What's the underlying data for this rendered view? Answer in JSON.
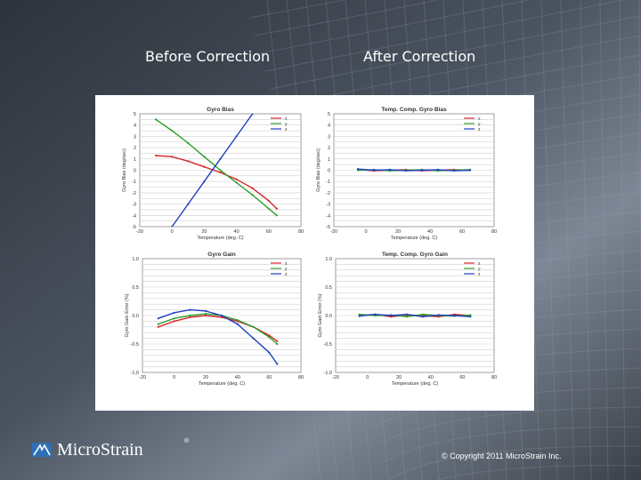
{
  "slide": {
    "before_heading": "Before Correction",
    "after_heading": "After Correction",
    "logo_text": "MicroStrain",
    "logo_tm": "®",
    "copyright": "© Copyright 2011 MicroStrain Inc."
  },
  "colors": {
    "background_dark": "#3c4450",
    "background_light": "#8a95a3",
    "x_series": "#d62728",
    "y_series": "#2ca02c",
    "z_series": "#1f3fbf",
    "logo_blue": "#2f6fb5"
  },
  "chart_data": [
    {
      "id": "bias-before",
      "type": "line",
      "title": "Gyro Bias",
      "xlabel": "Temperature (deg. C)",
      "ylabel": "Gyro Bias (deg/sec)",
      "xlim": [
        -20,
        80
      ],
      "ylim": [
        -5,
        5
      ],
      "xticks": [
        "-20",
        "0",
        "20",
        "40",
        "60",
        "80"
      ],
      "yticks": [
        "5",
        "4",
        "3",
        "2",
        "1",
        "0",
        "-1",
        "-2",
        "-3",
        "-4",
        "-5"
      ],
      "grid": true,
      "legend": "top-right",
      "series": [
        {
          "name": "x",
          "color": "#d62728",
          "x": [
            -10,
            0,
            10,
            20,
            30,
            40,
            50,
            60,
            65
          ],
          "y": [
            1.3,
            1.2,
            0.8,
            0.3,
            -0.2,
            -0.8,
            -1.6,
            -2.7,
            -3.4
          ]
        },
        {
          "name": "y",
          "color": "#2ca02c",
          "x": [
            -10,
            0,
            10,
            20,
            30,
            40,
            50,
            60,
            65
          ],
          "y": [
            4.5,
            3.5,
            2.4,
            1.2,
            0.0,
            -1.1,
            -2.2,
            -3.4,
            -4.0
          ]
        },
        {
          "name": "z",
          "color": "#1f3fbf",
          "x": [
            0,
            10,
            20,
            30,
            40,
            50,
            60
          ],
          "y": [
            -5.0,
            -3.0,
            -1.0,
            1.0,
            3.0,
            5.0,
            7.0
          ]
        }
      ]
    },
    {
      "id": "bias-after",
      "type": "line",
      "title": "Temp. Comp. Gyro Bias",
      "xlabel": "Temperature (deg. C)",
      "ylabel": "Gyro Bias (deg/sec)",
      "xlim": [
        -20,
        80
      ],
      "ylim": [
        -5,
        5
      ],
      "xticks": [
        "-20",
        "0",
        "20",
        "40",
        "60",
        "80"
      ],
      "yticks": [
        "5",
        "4",
        "3",
        "2",
        "1",
        "0",
        "-1",
        "-2",
        "-3",
        "-4",
        "-5"
      ],
      "grid": true,
      "legend": "top-right",
      "series": [
        {
          "name": "x",
          "color": "#d62728",
          "x": [
            -5,
            5,
            15,
            25,
            35,
            45,
            55,
            65
          ],
          "y": [
            0.05,
            -0.05,
            0.0,
            0.05,
            -0.05,
            0.0,
            0.05,
            0.0
          ]
        },
        {
          "name": "y",
          "color": "#2ca02c",
          "x": [
            -5,
            5,
            15,
            25,
            35,
            45,
            55,
            65
          ],
          "y": [
            0.0,
            0.05,
            -0.05,
            0.0,
            0.05,
            -0.05,
            0.0,
            0.05
          ]
        },
        {
          "name": "z",
          "color": "#1f3fbf",
          "x": [
            -5,
            5,
            15,
            25,
            35,
            45,
            55,
            65
          ],
          "y": [
            0.1,
            0.0,
            0.05,
            -0.05,
            0.0,
            0.05,
            -0.05,
            0.0
          ]
        }
      ]
    },
    {
      "id": "gain-before",
      "type": "line",
      "title": "Gyro Gain",
      "xlabel": "Temperature (deg. C)",
      "ylabel": "Gyro Gain Error (%)",
      "xlim": [
        -20,
        80
      ],
      "ylim": [
        -1.0,
        1.0
      ],
      "xticks": [
        "-20",
        "0",
        "20",
        "40",
        "60",
        "80"
      ],
      "yticks": [
        "1.0",
        "0.5",
        "0.0",
        "-0.5",
        "-1.0"
      ],
      "grid": true,
      "legend": "top-right",
      "series": [
        {
          "name": "x",
          "color": "#d62728",
          "x": [
            -10,
            0,
            10,
            20,
            30,
            40,
            50,
            60,
            65
          ],
          "y": [
            -0.2,
            -0.1,
            -0.03,
            0.0,
            -0.03,
            -0.1,
            -0.2,
            -0.35,
            -0.45
          ]
        },
        {
          "name": "y",
          "color": "#2ca02c",
          "x": [
            -10,
            0,
            10,
            20,
            30,
            40,
            50,
            60,
            65
          ],
          "y": [
            -0.15,
            -0.05,
            0.0,
            0.03,
            0.0,
            -0.08,
            -0.2,
            -0.38,
            -0.5
          ]
        },
        {
          "name": "z",
          "color": "#1f3fbf",
          "x": [
            -10,
            0,
            10,
            20,
            30,
            40,
            50,
            60,
            65
          ],
          "y": [
            -0.05,
            0.05,
            0.1,
            0.08,
            0.0,
            -0.15,
            -0.4,
            -0.65,
            -0.85
          ]
        }
      ]
    },
    {
      "id": "gain-after",
      "type": "line",
      "title": "Temp. Comp. Gyro Gain",
      "xlabel": "Temperature (deg. C)",
      "ylabel": "Gyro Gain Error (%)",
      "xlim": [
        -20,
        80
      ],
      "ylim": [
        -1.0,
        1.0
      ],
      "xticks": [
        "-20",
        "0",
        "20",
        "40",
        "60",
        "80"
      ],
      "yticks": [
        "1.0",
        "0.5",
        "0.0",
        "-0.5",
        "-1.0"
      ],
      "grid": true,
      "legend": "top-right",
      "series": [
        {
          "name": "x",
          "color": "#d62728",
          "x": [
            -5,
            5,
            15,
            25,
            35,
            45,
            55,
            65
          ],
          "y": [
            0.0,
            0.02,
            -0.02,
            0.01,
            0.0,
            -0.02,
            0.02,
            0.0
          ]
        },
        {
          "name": "y",
          "color": "#2ca02c",
          "x": [
            -5,
            5,
            15,
            25,
            35,
            45,
            55,
            65
          ],
          "y": [
            0.02,
            0.0,
            0.01,
            -0.02,
            0.02,
            0.0,
            -0.01,
            0.01
          ]
        },
        {
          "name": "z",
          "color": "#1f3fbf",
          "x": [
            -5,
            5,
            15,
            25,
            35,
            45,
            55,
            65
          ],
          "y": [
            -0.01,
            0.02,
            0.0,
            0.02,
            -0.02,
            0.01,
            0.0,
            -0.02
          ]
        }
      ]
    }
  ]
}
